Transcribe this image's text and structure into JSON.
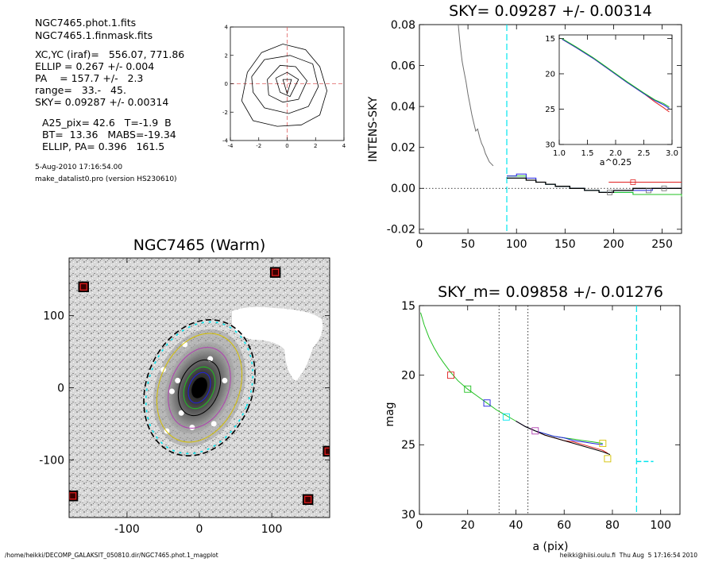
{
  "header": {
    "file1": "NGC7465.phot.1.fits",
    "file2": "NGC7465.1.finmask.fits",
    "xcyc": "XC,YC (iraf)=   556.07, 771.86",
    "ellip": "ELLIP = 0.267 +/- 0.004",
    "pa": "PA    = 157.7 +/-   2.3",
    "range": "range=   33.-   45.",
    "sky": "SKY= 0.09287 +/- 0.00314",
    "a25": "A25_pix= 42.6   T=-1.9  B",
    "bt": "BT=  13.36   MABS=-19.34",
    "ellip_pa": "ELLIP, PA= 0.396   161.5",
    "date": "5-Aug-2010 17:16:54.00",
    "program": "make_datalist0.pro (version HS230610)"
  },
  "footer": {
    "path": "/home/heikki/DECOMP_GALAKSIT_050810.dir/NGC7465.phot.1_magplot",
    "user": "heikki@hiisi.oulu.fi  Thu Aug  5 17:16:54 2010"
  },
  "colors": {
    "cyan": "#00e5ee",
    "red": "#e02020",
    "green": "#20c020",
    "blue": "#2020e0",
    "magenta": "#b040b0",
    "gray": "#6e6e6e"
  },
  "chart_data": [
    {
      "type": "contour",
      "id": "isophote_contours",
      "xlim": [
        -4,
        4
      ],
      "ylim": [
        -4,
        4
      ],
      "xticks": [
        "-4",
        "-2",
        "0",
        "2",
        "4"
      ],
      "yticks": [
        "-4",
        "-2",
        "0",
        "2",
        "4"
      ],
      "levels": [
        [
          [
            -0.3,
            0.3
          ],
          [
            0.3,
            0.3
          ],
          [
            0,
            -0.7
          ],
          [
            -0.3,
            0.3
          ]
        ],
        [
          [
            -0.8,
            0.4
          ],
          [
            0,
            0.8
          ],
          [
            0.8,
            0.3
          ],
          [
            0.2,
            -0.9
          ],
          [
            -0.5,
            -0.6
          ],
          [
            -0.8,
            0.4
          ]
        ],
        [
          [
            -1.4,
            0.3
          ],
          [
            -0.5,
            1.3
          ],
          [
            0.6,
            1.2
          ],
          [
            1.4,
            0.2
          ],
          [
            0.8,
            -1.1
          ],
          [
            -0.3,
            -1.3
          ],
          [
            -1.3,
            -0.8
          ],
          [
            -1.4,
            0.3
          ]
        ],
        [
          [
            -2.5,
            0.5
          ],
          [
            -1.6,
            1.7
          ],
          [
            0.2,
            2.0
          ],
          [
            1.8,
            1.4
          ],
          [
            2.2,
            -0.2
          ],
          [
            1.5,
            -1.6
          ],
          [
            0.1,
            -2.1
          ],
          [
            -1.6,
            -1.7
          ],
          [
            -2.4,
            -0.6
          ],
          [
            -2.5,
            0.5
          ]
        ],
        [
          [
            -3.2,
            -1.2
          ],
          [
            -2.8,
            0.8
          ],
          [
            -1.8,
            2.2
          ],
          [
            -0.3,
            2.8
          ],
          [
            1.3,
            2.4
          ],
          [
            2.3,
            1.2
          ],
          [
            2.8,
            -0.5
          ],
          [
            2.3,
            -2.2
          ],
          [
            1.0,
            -2.9
          ],
          [
            -0.7,
            -3.0
          ],
          [
            -2.4,
            -2.6
          ],
          [
            -3.2,
            -1.2
          ]
        ]
      ]
    },
    {
      "type": "line",
      "id": "intens_profile",
      "title": "SKY= 0.09287 +/- 0.00314",
      "ylabel": "INTENS-SKY",
      "xlim": [
        0,
        270
      ],
      "ylim": [
        -0.022,
        0.08
      ],
      "xticks": [
        "0",
        "50",
        "100",
        "150",
        "200",
        "250"
      ],
      "yticks": [
        "-0.02",
        "0.00",
        "0.02",
        "0.04",
        "0.06",
        "0.08"
      ],
      "vline_x": 90,
      "series": [
        {
          "color": "gray",
          "points": [
            [
              40,
              0.08
            ],
            [
              42,
              0.07
            ],
            [
              44,
              0.062
            ],
            [
              46,
              0.057
            ],
            [
              48,
              0.052
            ],
            [
              50,
              0.046
            ],
            [
              52,
              0.041
            ],
            [
              54,
              0.036
            ],
            [
              56,
              0.032
            ],
            [
              58,
              0.028
            ],
            [
              60,
              0.029
            ],
            [
              62,
              0.025
            ],
            [
              64,
              0.022
            ],
            [
              66,
              0.02
            ],
            [
              68,
              0.017
            ],
            [
              70,
              0.015
            ],
            [
              72,
              0.013
            ],
            [
              74,
              0.012
            ],
            [
              76,
              0.011
            ]
          ]
        },
        {
          "color": "cyan",
          "step": true,
          "points": [
            [
              90,
              0.005
            ],
            [
              100,
              0.005
            ],
            [
              110,
              0.004
            ],
            [
              120,
              0.003
            ],
            [
              130,
              0.002
            ],
            [
              140,
              0.001
            ],
            [
              155,
              0.0
            ],
            [
              170,
              -0.001
            ],
            [
              185,
              -0.002
            ],
            [
              200,
              -0.002
            ],
            [
              220,
              -0.003
            ],
            [
              240,
              -0.003
            ],
            [
              270,
              -0.003
            ]
          ]
        },
        {
          "color": "green",
          "step": true,
          "points": [
            [
              90,
              0.006
            ],
            [
              100,
              0.006
            ],
            [
              110,
              0.004
            ],
            [
              120,
              0.003
            ],
            [
              130,
              0.002
            ],
            [
              140,
              0.001
            ],
            [
              155,
              0.0
            ],
            [
              170,
              -0.001
            ],
            [
              185,
              -0.002
            ],
            [
              200,
              -0.002
            ],
            [
              220,
              -0.003
            ],
            [
              240,
              -0.003
            ],
            [
              270,
              -0.004
            ]
          ]
        },
        {
          "color": "blue",
          "step": true,
          "points": [
            [
              90,
              0.006
            ],
            [
              100,
              0.007
            ],
            [
              110,
              0.005
            ],
            [
              120,
              0.003
            ],
            [
              130,
              0.002
            ],
            [
              140,
              0.001
            ],
            [
              155,
              0.0
            ],
            [
              170,
              -0.001
            ],
            [
              185,
              -0.002
            ],
            [
              200,
              -0.001
            ],
            [
              220,
              -0.001
            ],
            [
              240,
              0.0
            ],
            [
              270,
              0.0
            ]
          ]
        },
        {
          "color": "red",
          "step": true,
          "points": [
            [
              195,
              0.003
            ],
            [
              230,
              0.003
            ],
            [
              270,
              0.003
            ]
          ]
        },
        {
          "color": "black",
          "step": true,
          "points": [
            [
              90,
              0.005
            ],
            [
              100,
              0.005
            ],
            [
              110,
              0.004
            ],
            [
              120,
              0.003
            ],
            [
              130,
              0.002
            ],
            [
              140,
              0.001
            ],
            [
              155,
              0.0
            ],
            [
              170,
              -0.001
            ],
            [
              185,
              -0.002
            ],
            [
              200,
              -0.001
            ],
            [
              220,
              0.0
            ],
            [
              245,
              0.0
            ],
            [
              270,
              0.0
            ]
          ]
        }
      ],
      "markers": [
        {
          "color": "red",
          "x": 220,
          "y": 0.003
        },
        {
          "color": "gray",
          "x": 196,
          "y": -0.002
        },
        {
          "color": "gray",
          "x": 236,
          "y": -0.001
        },
        {
          "color": "gray",
          "x": 252,
          "y": 0.0
        }
      ]
    },
    {
      "type": "line",
      "id": "inset_profile",
      "xlabel": "a^0.25",
      "xlim": [
        1.0,
        3.0
      ],
      "ylim": [
        30,
        14.5
      ],
      "xticks": [
        "1.0",
        "1.5",
        "2.0",
        "2.5",
        "3.0"
      ],
      "yticks": [
        "15",
        "20",
        "25",
        "30"
      ],
      "series": [
        {
          "color": "red",
          "points": [
            [
              1.05,
              15.1
            ],
            [
              1.3,
              16.3
            ],
            [
              1.6,
              17.8
            ],
            [
              1.9,
              19.5
            ],
            [
              2.2,
              21.2
            ],
            [
              2.5,
              22.8
            ],
            [
              2.7,
              24.0
            ],
            [
              2.85,
              24.8
            ],
            [
              2.95,
              25.4
            ]
          ]
        },
        {
          "color": "blue",
          "points": [
            [
              1.05,
              15.1
            ],
            [
              1.3,
              16.3
            ],
            [
              1.6,
              17.8
            ],
            [
              1.9,
              19.5
            ],
            [
              2.2,
              21.2
            ],
            [
              2.5,
              22.8
            ],
            [
              2.7,
              23.8
            ],
            [
              2.85,
              24.4
            ],
            [
              2.95,
              24.9
            ]
          ]
        },
        {
          "color": "green",
          "points": [
            [
              1.05,
              15.0
            ],
            [
              1.3,
              16.2
            ],
            [
              1.6,
              17.7
            ],
            [
              1.9,
              19.4
            ],
            [
              2.2,
              21.1
            ],
            [
              2.5,
              22.7
            ],
            [
              2.7,
              23.7
            ],
            [
              2.85,
              24.2
            ],
            [
              2.95,
              24.7
            ]
          ]
        }
      ]
    },
    {
      "type": "image",
      "id": "galaxy_image",
      "title": "NGC7465 (Warm)",
      "xlim": [
        -180,
        180
      ],
      "ylim": [
        -180,
        180
      ],
      "xticks": [
        "-100",
        "0",
        "100"
      ],
      "yticks": [
        "-100",
        "0",
        "100"
      ],
      "ellipses": [
        {
          "color": "black",
          "dashed": true,
          "a": 73,
          "b": 97,
          "angle": 22
        },
        {
          "color": "cyan",
          "dashed": true,
          "a": 70,
          "b": 94,
          "angle": 22
        },
        {
          "color": "yellow",
          "a": 55,
          "b": 78,
          "angle": 22
        },
        {
          "color": "magenta",
          "a": 40,
          "b": 58,
          "angle": 22
        },
        {
          "color": "black",
          "a": 27,
          "b": 40,
          "angle": 22
        },
        {
          "color": "green",
          "a": 20,
          "b": 30,
          "angle": 22
        },
        {
          "color": "blue",
          "a": 14,
          "b": 22,
          "angle": 22
        }
      ],
      "stars": [
        [
          -160,
          140
        ],
        [
          105,
          160
        ],
        [
          -175,
          -150
        ],
        [
          150,
          -155
        ],
        [
          178,
          -88
        ]
      ]
    },
    {
      "type": "line",
      "id": "mag_profile",
      "title": "SKY_m=  0.09858 +/- 0.01276",
      "xlabel": "a (pix)",
      "ylabel": "mag",
      "xlim": [
        0,
        108
      ],
      "ylim": [
        30,
        15
      ],
      "xticks": [
        "0",
        "20",
        "40",
        "60",
        "80",
        "100"
      ],
      "yticks": [
        "15",
        "20",
        "25",
        "30"
      ],
      "dotted_vlines": [
        33,
        45
      ],
      "dashed_vline": 90,
      "sky_segment": {
        "x1": 90,
        "x2": 97,
        "y": 26.2
      },
      "series": [
        {
          "color": "green",
          "points": [
            [
              0.5,
              15.5
            ],
            [
              2,
              16.4
            ],
            [
              4,
              17.3
            ],
            [
              6,
              18.0
            ],
            [
              8,
              18.6
            ],
            [
              10,
              19.1
            ],
            [
              13,
              19.8
            ],
            [
              16,
              20.4
            ],
            [
              20,
              21.0
            ],
            [
              24,
              21.5
            ],
            [
              28,
              22.0
            ],
            [
              32,
              22.5
            ],
            [
              36,
              22.9
            ],
            [
              40,
              23.3
            ],
            [
              44,
              23.7
            ],
            [
              48,
              24.0
            ],
            [
              52,
              24.2
            ],
            [
              56,
              24.4
            ],
            [
              60,
              24.5
            ],
            [
              64,
              24.6
            ],
            [
              68,
              24.7
            ],
            [
              72,
              24.8
            ],
            [
              76,
              24.9
            ]
          ]
        },
        {
          "color": "red",
          "points": [
            [
              40,
              23.3
            ],
            [
              44,
              23.7
            ],
            [
              48,
              24.0
            ],
            [
              52,
              24.3
            ],
            [
              56,
              24.5
            ],
            [
              60,
              24.7
            ],
            [
              64,
              24.8
            ],
            [
              68,
              25.0
            ],
            [
              72,
              25.2
            ],
            [
              76,
              25.4
            ],
            [
              78,
              25.6
            ]
          ]
        },
        {
          "color": "blue",
          "points": [
            [
              40,
              23.3
            ],
            [
              44,
              23.7
            ],
            [
              48,
              24.0
            ],
            [
              52,
              24.2
            ],
            [
              56,
              24.4
            ],
            [
              60,
              24.5
            ],
            [
              64,
              24.7
            ],
            [
              68,
              24.8
            ],
            [
              72,
              24.9
            ],
            [
              76,
              25.0
            ]
          ]
        },
        {
          "color": "black",
          "points": [
            [
              40,
              23.3
            ],
            [
              44,
              23.7
            ],
            [
              48,
              24.0
            ],
            [
              52,
              24.3
            ],
            [
              56,
              24.5
            ],
            [
              60,
              24.7
            ],
            [
              64,
              24.9
            ],
            [
              68,
              25.1
            ],
            [
              72,
              25.3
            ],
            [
              76,
              25.5
            ],
            [
              79,
              25.7
            ]
          ]
        }
      ],
      "markers": [
        {
          "color": "red",
          "x": 13,
          "y": 20.0
        },
        {
          "color": "green",
          "x": 20,
          "y": 21.0
        },
        {
          "color": "blue",
          "x": 28,
          "y": 22.0
        },
        {
          "color": "cyan",
          "x": 36,
          "y": 23.0
        },
        {
          "color": "magenta",
          "x": 48,
          "y": 24.0
        },
        {
          "color": "yellow",
          "x": 76,
          "y": 24.9
        },
        {
          "color": "yellow",
          "x": 78,
          "y": 26.0
        }
      ]
    }
  ]
}
